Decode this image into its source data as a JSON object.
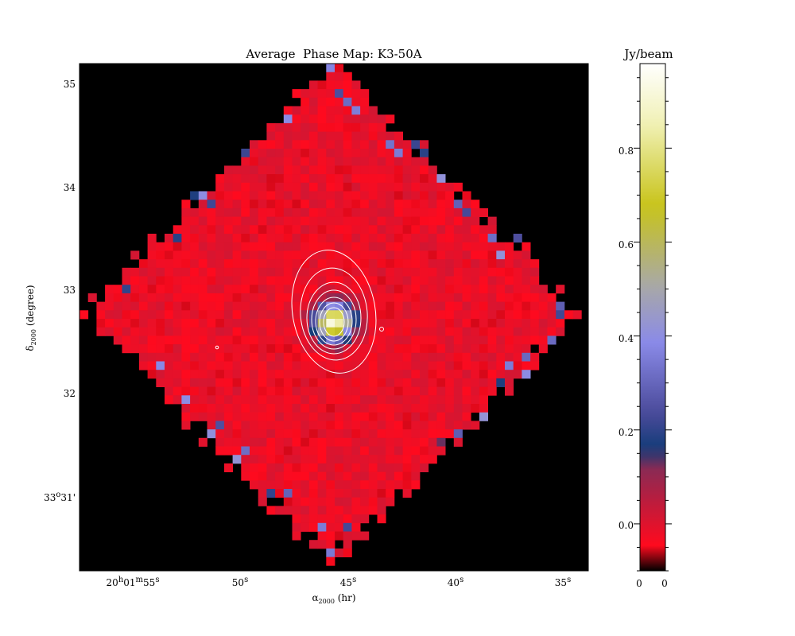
{
  "chart_data": {
    "type": "heatmap",
    "title": "Average  Phase Map: K3-50A",
    "xlabel": "α2000 (hr)",
    "xlabel_main": "α",
    "xlabel_sub": "2000",
    "xlabel_unit": " (hr)",
    "ylabel": "δ2000 (degree)",
    "ylabel_main": "δ",
    "ylabel_sub": "2000",
    "ylabel_unit": " (degree)",
    "x_ticks": [
      {
        "label": "20h01m55s",
        "parts": [
          "20",
          "h",
          "01",
          "m",
          "55",
          "s"
        ]
      },
      {
        "label": "50s",
        "parts": [
          "50",
          "s"
        ]
      },
      {
        "label": "45s",
        "parts": [
          "45",
          "s"
        ]
      },
      {
        "label": "40s",
        "parts": [
          "40",
          "s"
        ]
      },
      {
        "label": "35s",
        "parts": [
          "35",
          "s"
        ]
      }
    ],
    "y_ticks": [
      {
        "label": "35",
        "value": 35
      },
      {
        "label": "34",
        "value": 34
      },
      {
        "label": "33",
        "value": 33
      },
      {
        "label": "32",
        "value": 32
      },
      {
        "label": "33°31'",
        "parts": [
          "33",
          "o",
          "31'"
        ],
        "value": 31
      }
    ],
    "ylim": [
      30.2,
      35.2
    ],
    "colorbar": {
      "title": "Jy/beam",
      "range": [
        -0.1,
        0.98
      ],
      "ticks": [
        {
          "label": "0.8",
          "value": 0.8
        },
        {
          "label": "0.6",
          "value": 0.6
        },
        {
          "label": "0.4",
          "value": 0.4
        },
        {
          "label": "0.2",
          "value": 0.2
        },
        {
          "label": "0.0",
          "value": 0.0
        }
      ],
      "bottom_labels": [
        "0",
        "0"
      ]
    },
    "source_peak_jy_beam": 0.95,
    "background_level_jy_beam": -0.02
  },
  "colors": {
    "plot_background": "#000000",
    "map_background": "#e8102a",
    "contour": "#ffffff",
    "colormap": [
      "#000000",
      "#ff0a1e",
      "#8a2a54",
      "#123c78",
      "#4a4a9a",
      "#8a8ae8",
      "#a8a8a8",
      "#c8c41a",
      "#f0f0b4",
      "#ffffff"
    ]
  }
}
